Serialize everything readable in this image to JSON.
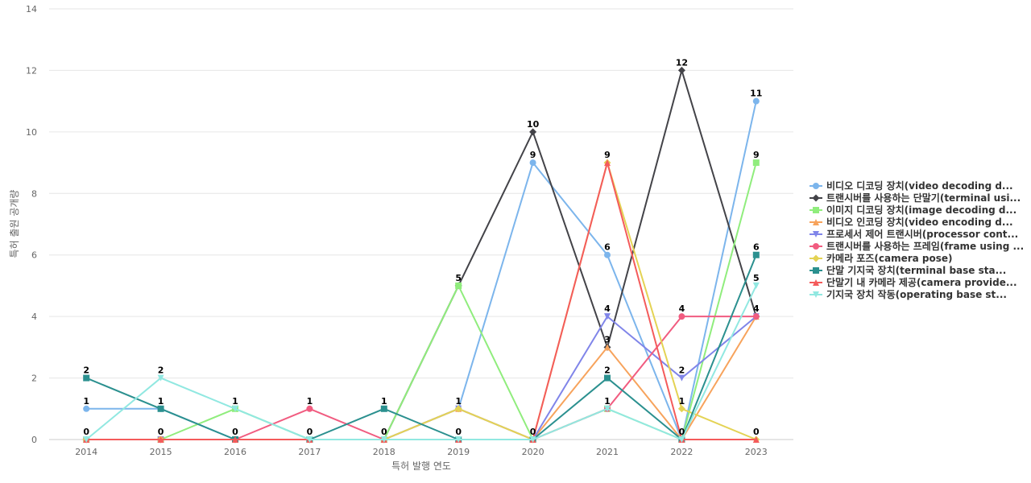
{
  "chart_data": {
    "type": "line",
    "title": "",
    "xlabel": "특허 발행 연도",
    "ylabel": "특허 출원 공개량",
    "ylim": [
      0,
      14
    ],
    "yticks": [
      0,
      2,
      4,
      6,
      8,
      10,
      12,
      14
    ],
    "x": [
      "2014",
      "2015",
      "2016",
      "2017",
      "2018",
      "2019",
      "2020",
      "2021",
      "2022",
      "2023"
    ],
    "grid": true,
    "legend_position": "right",
    "series": [
      {
        "name": "비디오 디코딩 장치(video decoding d...",
        "color": "#7cb5ec",
        "marker": "circle",
        "values": [
          1,
          1,
          0,
          0,
          0,
          1,
          9,
          6,
          0,
          11
        ]
      },
      {
        "name": "트랜시버를 사용하는 단말기(terminal usi...",
        "color": "#434348",
        "marker": "diamond",
        "values": [
          0,
          0,
          0,
          0,
          0,
          5,
          10,
          3,
          12,
          4
        ]
      },
      {
        "name": "이미지 디코딩 장치(image decoding d...",
        "color": "#90ed7d",
        "marker": "square",
        "values": [
          0,
          0,
          1,
          0,
          0,
          5,
          0,
          1,
          0,
          9
        ]
      },
      {
        "name": "비디오 인코딩 장치(video encoding d...",
        "color": "#f7a35c",
        "marker": "triangle",
        "values": [
          0,
          0,
          0,
          0,
          0,
          1,
          0,
          3,
          0,
          4
        ]
      },
      {
        "name": "프로세서 제어 트랜시버(processor cont...",
        "color": "#8085e9",
        "marker": "triangle-down",
        "values": [
          0,
          0,
          0,
          0,
          0,
          1,
          0,
          4,
          2,
          4
        ]
      },
      {
        "name": "트랜시버를 사용하는 프레임(frame using ...",
        "color": "#f15c80",
        "marker": "circle",
        "values": [
          0,
          0,
          0,
          1,
          0,
          0,
          0,
          1,
          4,
          4
        ]
      },
      {
        "name": "카메라 포즈(camera pose)",
        "color": "#e4d354",
        "marker": "diamond",
        "values": [
          0,
          0,
          0,
          0,
          0,
          1,
          0,
          9,
          1,
          0
        ]
      },
      {
        "name": "단말 기지국 장치(terminal base sta...",
        "color": "#2b908f",
        "marker": "square",
        "values": [
          2,
          1,
          0,
          0,
          1,
          0,
          0,
          2,
          0,
          6
        ]
      },
      {
        "name": "단말기 내 카메라 제공(camera provide...",
        "color": "#f45b5b",
        "marker": "triangle",
        "values": [
          0,
          0,
          0,
          0,
          0,
          0,
          0,
          9,
          0,
          0
        ]
      },
      {
        "name": "기지국 장치 작동(operating base st...",
        "color": "#91e8e1",
        "marker": "triangle-down",
        "values": [
          0,
          2,
          1,
          0,
          0,
          0,
          0,
          1,
          0,
          5
        ]
      }
    ],
    "data_labels": [
      {
        "series": 7,
        "index": 0,
        "text": "2"
      },
      {
        "series": 0,
        "index": 0,
        "text": "1"
      },
      {
        "series": 1,
        "index": 0,
        "text": "0"
      },
      {
        "series": 9,
        "index": 1,
        "text": "2"
      },
      {
        "series": 7,
        "index": 1,
        "text": "1"
      },
      {
        "series": 1,
        "index": 1,
        "text": "0"
      },
      {
        "series": 2,
        "index": 2,
        "text": "1"
      },
      {
        "series": 1,
        "index": 2,
        "text": "0"
      },
      {
        "series": 5,
        "index": 3,
        "text": "1"
      },
      {
        "series": 1,
        "index": 3,
        "text": "0"
      },
      {
        "series": 7,
        "index": 4,
        "text": "1"
      },
      {
        "series": 1,
        "index": 4,
        "text": "0"
      },
      {
        "series": 1,
        "index": 5,
        "text": "5"
      },
      {
        "series": 0,
        "index": 5,
        "text": "1"
      },
      {
        "series": 7,
        "index": 5,
        "text": "0"
      },
      {
        "series": 1,
        "index": 6,
        "text": "10"
      },
      {
        "series": 0,
        "index": 6,
        "text": "9"
      },
      {
        "series": 2,
        "index": 6,
        "text": "0"
      },
      {
        "series": 6,
        "index": 7,
        "text": "9"
      },
      {
        "series": 0,
        "index": 7,
        "text": "6"
      },
      {
        "series": 4,
        "index": 7,
        "text": "4"
      },
      {
        "series": 1,
        "index": 7,
        "text": "3"
      },
      {
        "series": 7,
        "index": 7,
        "text": "2"
      },
      {
        "series": 9,
        "index": 7,
        "text": "1"
      },
      {
        "series": 1,
        "index": 8,
        "text": "12"
      },
      {
        "series": 5,
        "index": 8,
        "text": "4"
      },
      {
        "series": 4,
        "index": 8,
        "text": "2"
      },
      {
        "series": 6,
        "index": 8,
        "text": "1"
      },
      {
        "series": 0,
        "index": 8,
        "text": "0"
      },
      {
        "series": 0,
        "index": 9,
        "text": "11"
      },
      {
        "series": 2,
        "index": 9,
        "text": "9"
      },
      {
        "series": 7,
        "index": 9,
        "text": "6"
      },
      {
        "series": 9,
        "index": 9,
        "text": "5"
      },
      {
        "series": 1,
        "index": 9,
        "text": "4"
      },
      {
        "series": 6,
        "index": 9,
        "text": "0"
      }
    ]
  }
}
